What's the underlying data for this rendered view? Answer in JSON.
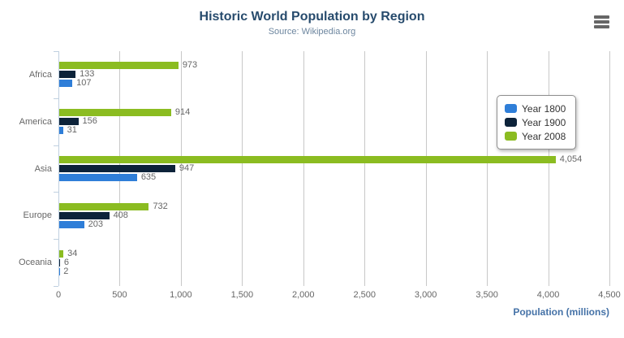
{
  "chart": {
    "title": "Historic World Population by Region",
    "subtitle": "Source: Wikipedia.org",
    "axis_title": "Population (millions)"
  },
  "icons": {
    "export_menu": "hamburger-menu-icon"
  },
  "colors": {
    "title": "#274b6d",
    "subtitle": "#6d869f",
    "axis_title": "#4572a7",
    "gridline": "#c8c8c8",
    "axis_line": "#c0d0e0",
    "labels": "#666666",
    "series_1800": "#2f7ed8",
    "series_1900": "#0d233a",
    "series_2008": "#8bbc21"
  },
  "legend": {
    "position": "right-top",
    "items": [
      {
        "label": "Year 1800",
        "color": "#2f7ed8"
      },
      {
        "label": "Year 1900",
        "color": "#0d233a"
      },
      {
        "label": "Year 2008",
        "color": "#8bbc21"
      }
    ]
  },
  "chart_data": {
    "type": "bar",
    "orientation": "horizontal",
    "title": "Historic World Population by Region",
    "subtitle": "Source: Wikipedia.org",
    "xlabel": "Population (millions)",
    "ylabel": "",
    "categories": [
      "Africa",
      "America",
      "Asia",
      "Europe",
      "Oceania"
    ],
    "series": [
      {
        "name": "Year 1800",
        "color": "#2f7ed8",
        "values": [
          107,
          31,
          635,
          203,
          2
        ]
      },
      {
        "name": "Year 1900",
        "color": "#0d233a",
        "values": [
          133,
          156,
          947,
          408,
          6
        ]
      },
      {
        "name": "Year 2008",
        "color": "#8bbc21",
        "values": [
          973,
          914,
          4054,
          732,
          34
        ]
      }
    ],
    "bar_display_order_top_to_bottom": [
      "Year 2008",
      "Year 1900",
      "Year 1800"
    ],
    "data_labels": true,
    "xlim": [
      0,
      4500
    ],
    "xticks": [
      0,
      500,
      1000,
      1500,
      2000,
      2500,
      3000,
      3500,
      4000,
      4500
    ],
    "grid": true,
    "legend_position": "right-top"
  }
}
